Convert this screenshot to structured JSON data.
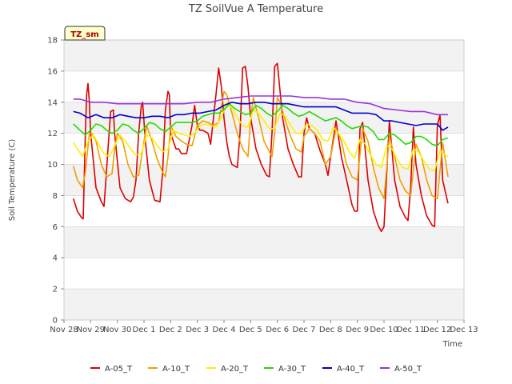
{
  "chart_data": {
    "type": "line",
    "title": "TZ SoilVue A Temperature",
    "xlabel": "Time",
    "ylabel": "Soil Temperature (C)",
    "tag": "TZ_sm",
    "ylim": [
      0,
      18
    ],
    "yticks": [
      0,
      2,
      4,
      6,
      8,
      10,
      12,
      14,
      16,
      18
    ],
    "xlim": [
      0,
      15
    ],
    "xticks": [
      {
        "x": 0,
        "label": "Nov 28"
      },
      {
        "x": 1,
        "label": "Nov 29"
      },
      {
        "x": 2,
        "label": "Nov 30"
      },
      {
        "x": 3,
        "label": "Dec 1"
      },
      {
        "x": 4,
        "label": "Dec 2"
      },
      {
        "x": 5,
        "label": "Dec 3"
      },
      {
        "x": 6,
        "label": "Dec 4"
      },
      {
        "x": 7,
        "label": "Dec 5"
      },
      {
        "x": 8,
        "label": "Dec 6"
      },
      {
        "x": 9,
        "label": "Dec 7"
      },
      {
        "x": 10,
        "label": "Dec 8"
      },
      {
        "x": 11,
        "label": "Dec 9"
      },
      {
        "x": 12,
        "label": "Dec 10"
      },
      {
        "x": 13,
        "label": "Dec 11"
      },
      {
        "x": 14,
        "label": "Dec 12"
      },
      {
        "x": 15,
        "label": "Dec 13"
      }
    ],
    "grid": "horizontal bands",
    "legend_position": "bottom",
    "series": [
      {
        "name": "A-05_T",
        "color": "#dd0000",
        "x": [
          0.35,
          0.5,
          0.65,
          0.72,
          0.8,
          0.85,
          0.9,
          0.95,
          1.0,
          1.2,
          1.4,
          1.5,
          1.55,
          1.65,
          1.75,
          1.85,
          1.9,
          2.1,
          2.3,
          2.5,
          2.6,
          2.7,
          2.8,
          2.9,
          2.95,
          3.05,
          3.2,
          3.4,
          3.6,
          3.7,
          3.8,
          3.9,
          3.95,
          4.0,
          4.2,
          4.3,
          4.4,
          4.6,
          4.8,
          4.9,
          5.0,
          5.1,
          5.2,
          5.3,
          5.4,
          5.5,
          5.7,
          5.8,
          5.9,
          6.0,
          6.1,
          6.2,
          6.3,
          6.5,
          6.6,
          6.7,
          6.8,
          6.9,
          7.0,
          7.2,
          7.4,
          7.6,
          7.7,
          7.8,
          7.9,
          8.0,
          8.2,
          8.4,
          8.6,
          8.8,
          8.9,
          9.0,
          9.1,
          9.2,
          9.4,
          9.6,
          9.8,
          9.9,
          10.0,
          10.2,
          10.4,
          10.6,
          10.8,
          10.9,
          11.0,
          11.1,
          11.2,
          11.4,
          11.6,
          11.8,
          11.9,
          12.0,
          12.2,
          12.4,
          12.6,
          12.8,
          12.9,
          13.0,
          13.1,
          13.2,
          13.4,
          13.6,
          13.8,
          13.9,
          14.0,
          14.1,
          14.2,
          14.4
        ],
        "y": [
          7.8,
          7.0,
          6.6,
          6.5,
          12.0,
          14.5,
          15.2,
          14.0,
          12.0,
          8.5,
          7.6,
          7.3,
          8.5,
          11.0,
          13.4,
          13.5,
          12.0,
          8.5,
          7.8,
          7.6,
          7.9,
          9.0,
          12.0,
          13.8,
          14.0,
          11.5,
          9.0,
          7.7,
          7.6,
          9.5,
          13.5,
          14.7,
          14.5,
          12.0,
          11.0,
          11.0,
          10.7,
          10.7,
          12.5,
          13.8,
          12.5,
          12.2,
          12.2,
          12.1,
          12.0,
          11.3,
          14.5,
          16.2,
          15.0,
          13.0,
          11.5,
          10.5,
          10.0,
          9.8,
          12.0,
          16.2,
          16.3,
          15.0,
          13.0,
          11.0,
          10.0,
          9.3,
          9.2,
          12.0,
          16.3,
          16.5,
          13.0,
          11.0,
          10.0,
          9.2,
          9.2,
          12.0,
          13.0,
          12.3,
          12.0,
          10.9,
          10.0,
          9.3,
          10.5,
          12.8,
          10.5,
          9.0,
          7.4,
          7.0,
          7.0,
          12.3,
          12.7,
          9.0,
          7.0,
          6.0,
          5.7,
          6.0,
          12.8,
          9.0,
          7.3,
          6.6,
          6.4,
          8.5,
          12.4,
          10.0,
          8.0,
          6.7,
          6.1,
          6.0,
          12.5,
          13.2,
          9.0,
          7.5
        ]
      },
      {
        "name": "A-10_T",
        "color": "#f0a000",
        "x": [
          0.35,
          0.5,
          0.7,
          0.8,
          0.95,
          1.05,
          1.2,
          1.4,
          1.6,
          1.8,
          1.9,
          2.0,
          2.2,
          2.4,
          2.6,
          2.8,
          3.0,
          3.1,
          3.3,
          3.5,
          3.7,
          3.8,
          3.9,
          4.0,
          4.2,
          4.4,
          4.6,
          4.8,
          5.0,
          5.2,
          5.4,
          5.6,
          5.8,
          6.0,
          6.1,
          6.3,
          6.5,
          6.7,
          6.9,
          7.0,
          7.1,
          7.3,
          7.5,
          7.8,
          7.9,
          8.0,
          8.1,
          8.3,
          8.5,
          8.7,
          8.9,
          9.0,
          9.2,
          9.4,
          9.6,
          9.8,
          10.0,
          10.2,
          10.4,
          10.6,
          10.8,
          11.0,
          11.2,
          11.4,
          11.6,
          11.8,
          12.0,
          12.2,
          12.4,
          12.6,
          12.8,
          13.0,
          13.2,
          13.4,
          13.6,
          13.8,
          14.0,
          14.2,
          14.4
        ],
        "y": [
          9.9,
          9.0,
          8.5,
          9.5,
          12.0,
          12.0,
          11.5,
          10.0,
          9.2,
          9.4,
          11.0,
          12.0,
          11.5,
          10.0,
          9.2,
          9.3,
          11.5,
          12.5,
          11.5,
          10.3,
          9.5,
          9.2,
          10.5,
          12.5,
          11.8,
          11.5,
          11.3,
          11.2,
          12.5,
          12.8,
          12.7,
          12.5,
          12.7,
          14.7,
          14.5,
          13.3,
          12.0,
          11.0,
          10.5,
          13.0,
          14.3,
          13.0,
          11.5,
          10.5,
          12.0,
          14.3,
          14.0,
          12.8,
          11.8,
          11.0,
          10.8,
          11.8,
          12.3,
          12.0,
          11.5,
          10.0,
          10.5,
          12.3,
          11.5,
          10.0,
          9.2,
          9.0,
          12.3,
          11.5,
          9.8,
          8.5,
          7.8,
          11.8,
          10.5,
          9.0,
          8.3,
          8.0,
          11.3,
          10.5,
          9.0,
          8.0,
          7.8,
          11.4,
          9.2
        ]
      },
      {
        "name": "A-20_T",
        "color": "#ffee00",
        "x": [
          0.35,
          0.5,
          0.7,
          0.9,
          1.1,
          1.3,
          1.5,
          1.7,
          1.9,
          2.1,
          2.3,
          2.5,
          2.7,
          2.9,
          3.1,
          3.3,
          3.5,
          3.7,
          3.9,
          4.1,
          4.3,
          4.5,
          4.7,
          4.9,
          5.1,
          5.3,
          5.5,
          5.7,
          5.9,
          6.1,
          6.3,
          6.5,
          6.7,
          6.9,
          7.1,
          7.3,
          7.5,
          7.7,
          7.9,
          8.1,
          8.3,
          8.5,
          8.7,
          8.9,
          9.1,
          9.3,
          9.5,
          9.7,
          9.9,
          10.1,
          10.3,
          10.5,
          10.7,
          10.9,
          11.1,
          11.3,
          11.5,
          11.7,
          11.9,
          12.1,
          12.3,
          12.5,
          12.7,
          12.9,
          13.1,
          13.3,
          13.5,
          13.7,
          13.9,
          14.1,
          14.3,
          14.4
        ],
        "y": [
          11.4,
          11.0,
          10.5,
          11.5,
          11.9,
          11.3,
          10.7,
          10.5,
          11.2,
          11.9,
          11.5,
          11.0,
          10.6,
          10.7,
          11.9,
          11.7,
          11.2,
          10.8,
          11.0,
          12.2,
          12.0,
          11.9,
          11.8,
          12.0,
          12.5,
          12.6,
          12.5,
          12.4,
          13.0,
          14.0,
          13.6,
          13.0,
          12.5,
          12.4,
          13.5,
          13.3,
          12.8,
          12.3,
          12.3,
          13.3,
          13.1,
          12.5,
          12.0,
          12.0,
          12.6,
          12.5,
          12.2,
          11.6,
          11.5,
          12.4,
          12.0,
          11.5,
          10.8,
          10.4,
          11.6,
          11.3,
          10.6,
          10.0,
          9.8,
          11.2,
          11.0,
          10.3,
          9.8,
          9.7,
          11.0,
          10.8,
          10.2,
          9.7,
          9.6,
          10.9,
          10.6,
          10.5
        ]
      },
      {
        "name": "A-30_T",
        "color": "#22dd00",
        "x": [
          0.35,
          0.6,
          0.8,
          1.0,
          1.2,
          1.4,
          1.6,
          1.8,
          2.0,
          2.2,
          2.4,
          2.6,
          2.8,
          3.0,
          3.2,
          3.4,
          3.6,
          3.8,
          4.0,
          4.2,
          4.4,
          4.6,
          4.8,
          5.0,
          5.2,
          5.4,
          5.6,
          5.8,
          6.0,
          6.2,
          6.4,
          6.6,
          6.8,
          7.0,
          7.2,
          7.4,
          7.6,
          7.8,
          8.0,
          8.2,
          8.4,
          8.6,
          8.8,
          9.0,
          9.2,
          9.4,
          9.6,
          9.8,
          10.0,
          10.2,
          10.4,
          10.6,
          10.8,
          11.0,
          11.2,
          11.4,
          11.6,
          11.8,
          12.0,
          12.2,
          12.4,
          12.6,
          12.8,
          13.0,
          13.2,
          13.4,
          13.6,
          13.8,
          14.0,
          14.2,
          14.4
        ],
        "y": [
          12.6,
          12.2,
          11.9,
          12.2,
          12.6,
          12.5,
          12.2,
          12.0,
          12.2,
          12.6,
          12.5,
          12.2,
          12.0,
          12.3,
          12.7,
          12.6,
          12.3,
          12.1,
          12.4,
          12.7,
          12.7,
          12.7,
          12.7,
          12.8,
          13.1,
          13.2,
          13.3,
          13.3,
          13.5,
          13.9,
          13.6,
          13.4,
          13.2,
          13.3,
          13.8,
          13.6,
          13.3,
          13.1,
          13.4,
          13.8,
          13.6,
          13.3,
          13.1,
          13.2,
          13.4,
          13.2,
          13.0,
          12.8,
          12.9,
          13.0,
          12.8,
          12.5,
          12.3,
          12.4,
          12.5,
          12.4,
          12.1,
          11.6,
          11.6,
          12.0,
          11.9,
          11.6,
          11.3,
          11.4,
          11.8,
          11.8,
          11.6,
          11.3,
          11.2,
          11.6,
          11.7
        ]
      },
      {
        "name": "A-40_T",
        "color": "#0000cc",
        "x": [
          0.35,
          0.6,
          0.9,
          1.2,
          1.5,
          1.8,
          2.1,
          2.4,
          2.7,
          3.0,
          3.3,
          3.6,
          3.9,
          4.2,
          4.5,
          4.8,
          5.1,
          5.4,
          5.7,
          6.0,
          6.3,
          6.6,
          6.9,
          7.2,
          7.5,
          7.8,
          8.1,
          8.4,
          8.7,
          9.0,
          9.3,
          9.6,
          9.9,
          10.2,
          10.5,
          10.8,
          11.1,
          11.4,
          11.7,
          12.0,
          12.3,
          12.6,
          12.9,
          13.2,
          13.5,
          13.8,
          14.0,
          14.2,
          14.4
        ],
        "y": [
          13.4,
          13.3,
          13.0,
          13.2,
          13.0,
          13.0,
          13.2,
          13.1,
          13.0,
          13.0,
          13.1,
          13.1,
          13.0,
          13.2,
          13.2,
          13.3,
          13.3,
          13.4,
          13.5,
          13.8,
          14.0,
          13.9,
          13.9,
          14.0,
          14.0,
          13.9,
          13.9,
          13.9,
          13.8,
          13.7,
          13.7,
          13.7,
          13.7,
          13.7,
          13.5,
          13.3,
          13.3,
          13.3,
          13.2,
          12.8,
          12.8,
          12.7,
          12.6,
          12.5,
          12.6,
          12.6,
          12.6,
          12.2,
          12.4
        ]
      },
      {
        "name": "A-50_T",
        "color": "#9933dd",
        "x": [
          0.35,
          0.6,
          1.0,
          1.5,
          2.0,
          2.5,
          3.0,
          3.5,
          4.0,
          4.5,
          5.0,
          5.5,
          6.0,
          6.5,
          7.0,
          7.5,
          8.0,
          8.5,
          9.0,
          9.5,
          10.0,
          10.5,
          11.0,
          11.5,
          12.0,
          12.5,
          13.0,
          13.5,
          14.0,
          14.4
        ],
        "y": [
          14.2,
          14.2,
          14.0,
          14.0,
          13.9,
          13.9,
          13.9,
          13.9,
          13.9,
          13.9,
          14.0,
          14.0,
          14.2,
          14.3,
          14.4,
          14.4,
          14.4,
          14.4,
          14.3,
          14.3,
          14.2,
          14.2,
          14.0,
          13.9,
          13.6,
          13.5,
          13.4,
          13.4,
          13.2,
          13.2
        ]
      }
    ]
  }
}
